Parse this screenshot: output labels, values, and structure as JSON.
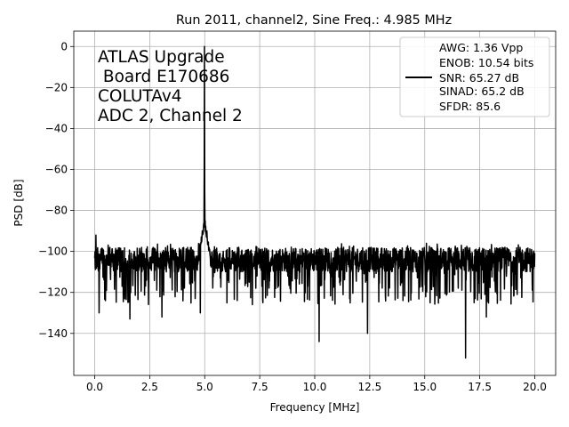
{
  "chart_data": {
    "type": "line",
    "title": "Run 2011, channel2, Sine Freq.: 4.985 MHz",
    "xlabel": "Frequency [MHz]",
    "ylabel": "PSD [dB]",
    "xlim": [
      -0.95,
      20.95
    ],
    "ylim": [
      -160.5,
      7.5
    ],
    "xticks": [
      0.0,
      2.5,
      5.0,
      7.5,
      10.0,
      12.5,
      15.0,
      17.5,
      20.0
    ],
    "xtick_labels": [
      "0.0",
      "2.5",
      "5.0",
      "7.5",
      "10.0",
      "12.5",
      "15.0",
      "17.5",
      "20.0"
    ],
    "yticks": [
      0,
      -20,
      -40,
      -60,
      -80,
      -100,
      -120,
      -140
    ],
    "ytick_labels": [
      "0",
      "−20",
      "−40",
      "−60",
      "−80",
      "−100",
      "−120",
      "−140"
    ],
    "grid": true,
    "legend_position": "top-right",
    "line_color": "#000000",
    "annotation": [
      "ATLAS Upgrade",
      " Board E170686",
      "COLUTAv4",
      "ADC 2, Channel 2"
    ],
    "legend_lines": [
      "AWG: 1.36 Vpp",
      "ENOB: 10.54 bits",
      "SNR: 65.27 dB",
      "SINAD: 65.2 dB",
      "SFDR: 85.6"
    ],
    "series": [
      {
        "signal_frequency": 4.985,
        "signal_peak": 0,
        "noise_floor_median": -104,
        "noise_floor_min": -120,
        "noise_floor_max": -96,
        "spurs": [
          {
            "x": 0.05,
            "y": -92
          },
          {
            "x": 4.985,
            "y": 0
          },
          {
            "x": 5.02,
            "y": -85
          },
          {
            "x": 5.1,
            "y": -90
          }
        ],
        "dips": [
          {
            "x": 0.2,
            "y": -130
          },
          {
            "x": 1.6,
            "y": -133
          },
          {
            "x": 3.05,
            "y": -132
          },
          {
            "x": 4.8,
            "y": -130
          },
          {
            "x": 10.2,
            "y": -144
          },
          {
            "x": 12.4,
            "y": -140
          },
          {
            "x": 16.85,
            "y": -152
          },
          {
            "x": 17.8,
            "y": -132
          }
        ]
      }
    ]
  }
}
